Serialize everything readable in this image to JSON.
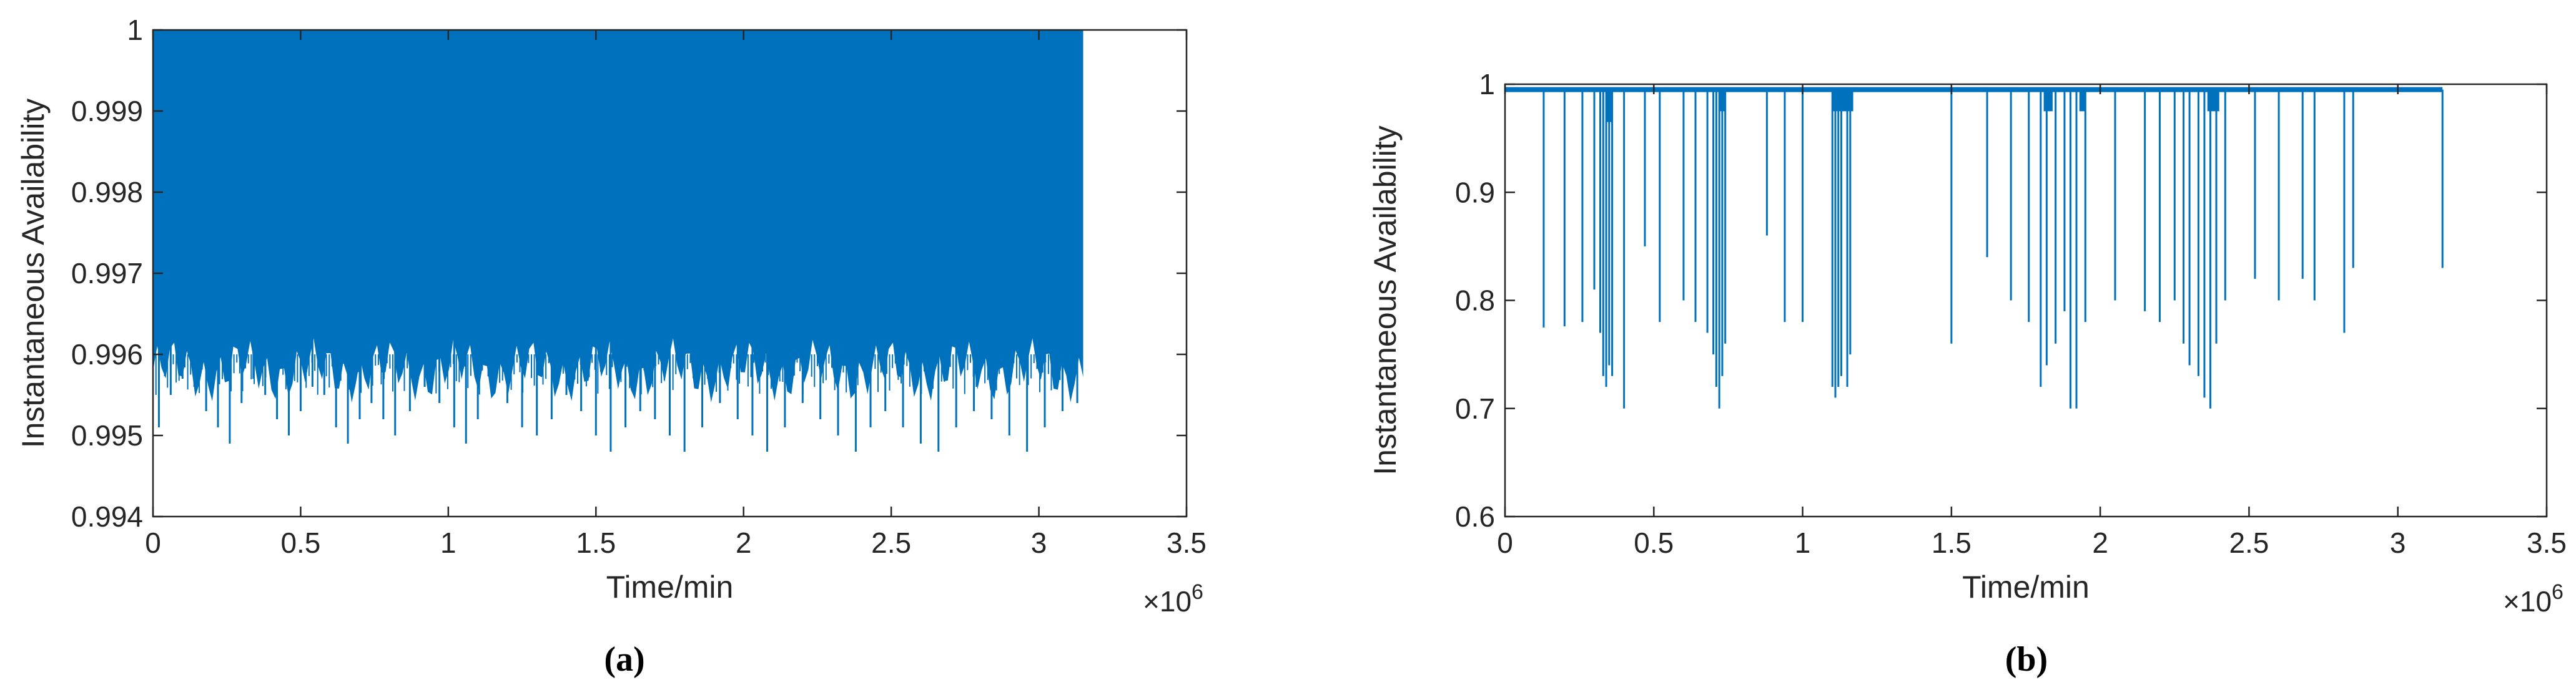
{
  "chart_data": [
    {
      "type": "line",
      "panel_label": "(a)",
      "xlabel": "Time/min",
      "ylabel": "Instantaneous Availability",
      "x_exponent_label": "×10",
      "x_exponent_power": "6",
      "xlim": [
        0,
        3.5
      ],
      "ylim": [
        0.994,
        1
      ],
      "xticks": [
        0,
        0.5,
        1,
        1.5,
        2,
        2.5,
        3,
        3.5
      ],
      "xtick_labels": [
        "0",
        "0.5",
        "1",
        "1.5",
        "2",
        "2.5",
        "3",
        "3.5"
      ],
      "yticks": [
        0.994,
        0.995,
        0.996,
        0.997,
        0.998,
        0.999,
        1
      ],
      "ytick_labels": [
        "0.994",
        "0.995",
        "0.996",
        "0.997",
        "0.998",
        "0.999",
        "1"
      ],
      "series_color": "#0072BD",
      "series": [
        {
          "x_range": [
            0,
            3.15
          ],
          "upper": 1,
          "band_floor": 0.9965,
          "dips": [
            [
              0.02,
              0.9951
            ],
            [
              0.06,
              0.9955
            ],
            [
              0.1,
              0.9957
            ],
            [
              0.14,
              0.9956
            ],
            [
              0.18,
              0.9953
            ],
            [
              0.22,
              0.9951
            ],
            [
              0.26,
              0.9949
            ],
            [
              0.3,
              0.9954
            ],
            [
              0.34,
              0.9957
            ],
            [
              0.38,
              0.9955
            ],
            [
              0.42,
              0.9952
            ],
            [
              0.46,
              0.995
            ],
            [
              0.5,
              0.9953
            ],
            [
              0.54,
              0.9956
            ],
            [
              0.58,
              0.9955
            ],
            [
              0.62,
              0.9951
            ],
            [
              0.66,
              0.9949
            ],
            [
              0.7,
              0.9952
            ],
            [
              0.74,
              0.9954
            ],
            [
              0.78,
              0.9952
            ],
            [
              0.82,
              0.995
            ],
            [
              0.87,
              0.9953
            ],
            [
              0.92,
              0.9956
            ],
            [
              0.97,
              0.9954
            ],
            [
              1.02,
              0.9951
            ],
            [
              1.06,
              0.9949
            ],
            [
              1.1,
              0.9952
            ],
            [
              1.15,
              0.9955
            ],
            [
              1.2,
              0.9954
            ],
            [
              1.25,
              0.9951
            ],
            [
              1.3,
              0.995
            ],
            [
              1.35,
              0.9952
            ],
            [
              1.4,
              0.9955
            ],
            [
              1.45,
              0.9953
            ],
            [
              1.5,
              0.995
            ],
            [
              1.55,
              0.9948
            ],
            [
              1.6,
              0.9951
            ],
            [
              1.65,
              0.9953
            ],
            [
              1.7,
              0.9952
            ],
            [
              1.75,
              0.995
            ],
            [
              1.8,
              0.9948
            ],
            [
              1.86,
              0.9951
            ],
            [
              1.92,
              0.9954
            ],
            [
              1.98,
              0.9952
            ],
            [
              2.03,
              0.995
            ],
            [
              2.08,
              0.9948
            ],
            [
              2.14,
              0.9951
            ],
            [
              2.2,
              0.9954
            ],
            [
              2.26,
              0.9952
            ],
            [
              2.32,
              0.995
            ],
            [
              2.38,
              0.9948
            ],
            [
              2.43,
              0.9951
            ],
            [
              2.48,
              0.9953
            ],
            [
              2.54,
              0.9951
            ],
            [
              2.6,
              0.9949
            ],
            [
              2.66,
              0.9948
            ],
            [
              2.72,
              0.9951
            ],
            [
              2.78,
              0.9953
            ],
            [
              2.84,
              0.9952
            ],
            [
              2.9,
              0.995
            ],
            [
              2.96,
              0.9948
            ],
            [
              3.02,
              0.9951
            ],
            [
              3.08,
              0.9953
            ],
            [
              3.13,
              0.9954
            ]
          ]
        }
      ]
    },
    {
      "type": "line",
      "panel_label": "(b)",
      "xlabel": "Time/min",
      "ylabel": "Instantaneous Availability",
      "x_exponent_label": "×10",
      "x_exponent_power": "6",
      "xlim": [
        0,
        3.5
      ],
      "ylim": [
        0.6,
        1
      ],
      "xticks": [
        0,
        0.5,
        1,
        1.5,
        2,
        2.5,
        3,
        3.5
      ],
      "xtick_labels": [
        "0",
        "0.5",
        "1",
        "1.5",
        "2",
        "2.5",
        "3",
        "3.5"
      ],
      "yticks": [
        0.6,
        0.7,
        0.8,
        0.9,
        1
      ],
      "ytick_labels": [
        "0.6",
        "0.7",
        "0.8",
        "0.9",
        "1"
      ],
      "series_color": "#0072BD",
      "series": [
        {
          "x_range": [
            0,
            3.15
          ],
          "baseline": 0.995,
          "dips": [
            [
              0.13,
              0.775
            ],
            [
              0.2,
              0.776
            ],
            [
              0.26,
              0.78
            ],
            [
              0.3,
              0.81
            ],
            [
              0.32,
              0.77
            ],
            [
              0.33,
              0.73
            ],
            [
              0.34,
              0.72
            ],
            [
              0.35,
              0.74
            ],
            [
              0.36,
              0.73
            ],
            [
              0.4,
              0.7
            ],
            [
              0.47,
              0.85
            ],
            [
              0.52,
              0.78
            ],
            [
              0.6,
              0.8
            ],
            [
              0.64,
              0.78
            ],
            [
              0.68,
              0.77
            ],
            [
              0.7,
              0.75
            ],
            [
              0.71,
              0.72
            ],
            [
              0.72,
              0.7
            ],
            [
              0.73,
              0.73
            ],
            [
              0.74,
              0.76
            ],
            [
              0.88,
              0.86
            ],
            [
              0.94,
              0.78
            ],
            [
              1.0,
              0.78
            ],
            [
              1.1,
              0.72
            ],
            [
              1.11,
              0.71
            ],
            [
              1.12,
              0.72
            ],
            [
              1.13,
              0.73
            ],
            [
              1.15,
              0.72
            ],
            [
              1.16,
              0.75
            ],
            [
              1.5,
              0.76
            ],
            [
              1.62,
              0.84
            ],
            [
              1.7,
              0.8
            ],
            [
              1.76,
              0.78
            ],
            [
              1.8,
              0.72
            ],
            [
              1.82,
              0.74
            ],
            [
              1.85,
              0.76
            ],
            [
              1.88,
              0.79
            ],
            [
              1.9,
              0.7
            ],
            [
              1.92,
              0.7
            ],
            [
              1.95,
              0.78
            ],
            [
              2.05,
              0.8
            ],
            [
              2.15,
              0.79
            ],
            [
              2.2,
              0.78
            ],
            [
              2.25,
              0.8
            ],
            [
              2.28,
              0.76
            ],
            [
              2.3,
              0.74
            ],
            [
              2.33,
              0.73
            ],
            [
              2.35,
              0.71
            ],
            [
              2.37,
              0.7
            ],
            [
              2.39,
              0.76
            ],
            [
              2.42,
              0.8
            ],
            [
              2.52,
              0.82
            ],
            [
              2.6,
              0.8
            ],
            [
              2.68,
              0.82
            ],
            [
              2.72,
              0.8
            ],
            [
              2.82,
              0.77
            ],
            [
              2.85,
              0.83
            ],
            [
              3.15,
              0.83
            ]
          ],
          "plateaus": [
            [
              0.34,
              0.36,
              0.965
            ],
            [
              0.72,
              0.74,
              0.975
            ],
            [
              1.1,
              1.17,
              0.975
            ],
            [
              1.81,
              1.84,
              0.975
            ],
            [
              1.93,
              1.95,
              0.975
            ],
            [
              2.36,
              2.4,
              0.975
            ]
          ]
        }
      ]
    }
  ]
}
